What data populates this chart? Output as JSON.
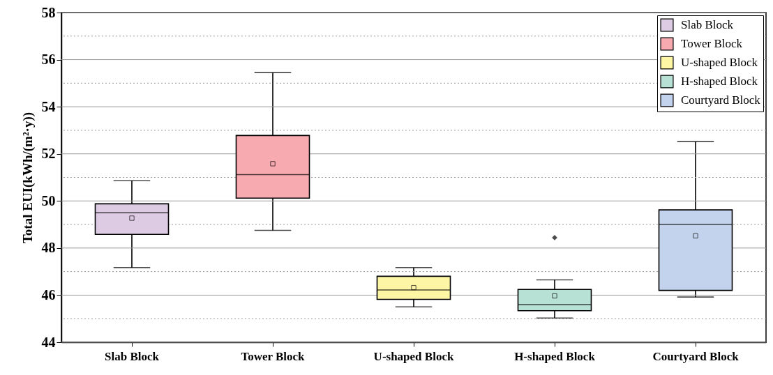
{
  "chart_data": {
    "type": "box",
    "ylabel": "Total EUI(kWh/(m²·y))",
    "categories": [
      "Slab Block",
      "Tower Block",
      "U-shaped Block",
      "H-shaped Block",
      "Courtyard Block"
    ],
    "series": [
      {
        "name": "Slab Block",
        "color": "#dccbe3",
        "boxes": [
          {
            "low": 47.17,
            "q1": 48.58,
            "median": 49.5,
            "q3": 49.88,
            "high": 50.86,
            "mean": 49.27
          },
          null,
          null,
          null,
          null
        ]
      },
      {
        "name": "Tower Block",
        "color": "#f8aab1",
        "boxes": [
          null,
          {
            "low": 48.75,
            "q1": 50.12,
            "median": 51.12,
            "q3": 52.78,
            "high": 55.45,
            "mean": 51.58
          },
          null,
          null,
          null
        ]
      },
      {
        "name": "U-shaped Block",
        "color": "#fdf6a5",
        "boxes": [
          null,
          null,
          {
            "low": 45.5,
            "q1": 45.82,
            "median": 46.22,
            "q3": 46.8,
            "high": 47.17,
            "mean": 46.32
          },
          null,
          null
        ]
      },
      {
        "name": "H-shaped Block",
        "color": "#b7e1d5",
        "boxes": [
          null,
          null,
          null,
          {
            "low": 45.03,
            "q1": 45.34,
            "median": 45.6,
            "q3": 46.24,
            "high": 46.65,
            "mean": 45.97,
            "outliers": [
              48.44
            ]
          },
          null
        ]
      },
      {
        "name": "Courtyard Block",
        "color": "#c3d3ee",
        "boxes": [
          null,
          null,
          null,
          null,
          {
            "low": 45.92,
            "q1": 46.2,
            "median": 49.0,
            "q3": 49.62,
            "high": 52.52,
            "mean": 48.52
          }
        ]
      }
    ],
    "ylim": [
      44,
      58
    ],
    "yticks": [
      44,
      {
        "value": 45,
        "label": null
      },
      46,
      {
        "value": 47,
        "label": null
      },
      48,
      {
        "value": 49,
        "label": null
      },
      50,
      {
        "value": 51,
        "label": null
      },
      52,
      {
        "value": 53,
        "label": null
      },
      54,
      {
        "value": 55,
        "label": null
      },
      56,
      {
        "value": 57,
        "label": null
      },
      58
    ],
    "grid": true,
    "legend": "top right",
    "marker": "square"
  }
}
